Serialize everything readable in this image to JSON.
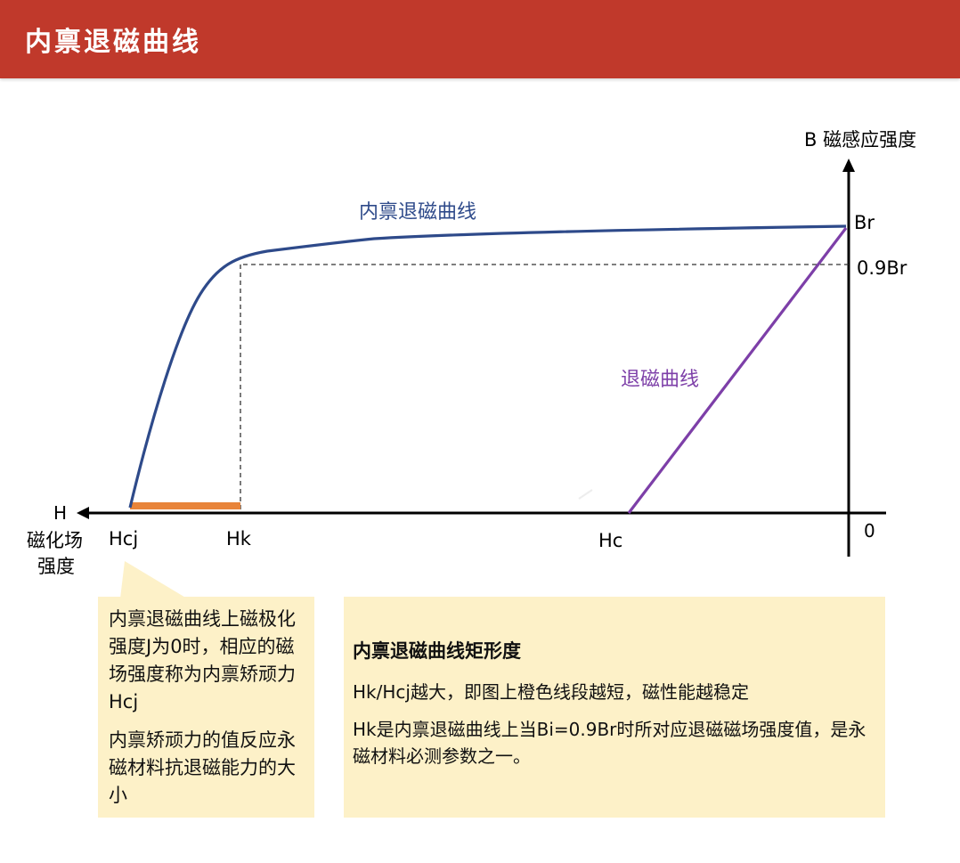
{
  "header": {
    "title": "内禀退磁曲线"
  },
  "axes": {
    "y_label": "B 磁感应强度",
    "x_arrow_label": "H",
    "x_title_line1": "磁化场",
    "x_title_line2": "强度",
    "origin": "0"
  },
  "marks": {
    "br": "Br",
    "br09": "0.9Br",
    "hcj": "Hcj",
    "hk": "Hk",
    "hc": "Hc"
  },
  "curves": {
    "intrinsic_label": "内禀退磁曲线",
    "demag_label": "退磁曲线",
    "intrinsic_color": "#2e4a8a",
    "demag_color": "#7d3fa8",
    "segment_color": "#e8843a"
  },
  "note_left": {
    "p1": "内禀退磁曲线上磁极化强度J为0时，相应的磁场强度称为内禀矫顽力Hcj",
    "p2": "内禀矫顽力的值反应永磁材料抗退磁能力的大小"
  },
  "note_right": {
    "title": "内禀退磁曲线矩形度",
    "p1": "Hk/Hcj越大，即图上橙色线段越短，磁性能越稳定",
    "p2": "Hk是内禀退磁曲线上当Bi=0.9Br时所对应退磁磁场强度值，是永磁材料必测参数之一。"
  }
}
